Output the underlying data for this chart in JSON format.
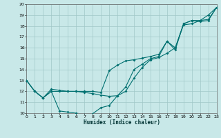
{
  "xlabel": "Humidex (Indice chaleur)",
  "bg_color": "#c8e8e8",
  "grid_color": "#a0c8c8",
  "line_color": "#007070",
  "xlim": [
    0,
    23
  ],
  "ylim": [
    10,
    20
  ],
  "xticks": [
    0,
    1,
    2,
    3,
    4,
    5,
    6,
    7,
    8,
    9,
    10,
    11,
    12,
    13,
    14,
    15,
    16,
    17,
    18,
    19,
    20,
    21,
    22,
    23
  ],
  "yticks": [
    10,
    11,
    12,
    13,
    14,
    15,
    16,
    17,
    18,
    19,
    20
  ],
  "line1_x": [
    0,
    1,
    2,
    3,
    4,
    5,
    6,
    7,
    8,
    9,
    10,
    11,
    12,
    13,
    14,
    15,
    16,
    17,
    18,
    19,
    20,
    21,
    22,
    23
  ],
  "line1_y": [
    13.0,
    12.0,
    11.4,
    12.0,
    10.2,
    10.1,
    10.0,
    9.9,
    9.95,
    10.5,
    10.7,
    11.6,
    12.4,
    14.0,
    14.5,
    15.0,
    15.2,
    16.6,
    15.8,
    18.2,
    18.5,
    18.4,
    18.5,
    19.7
  ],
  "line2_x": [
    0,
    1,
    2,
    3,
    4,
    5,
    6,
    7,
    8,
    9,
    10,
    11,
    12,
    13,
    14,
    15,
    16,
    17,
    18,
    19,
    20,
    21,
    22,
    23
  ],
  "line2_y": [
    13.0,
    12.0,
    11.4,
    12.0,
    12.0,
    12.0,
    12.0,
    11.9,
    11.8,
    11.65,
    11.55,
    11.6,
    12.0,
    13.2,
    14.2,
    14.9,
    15.1,
    15.5,
    16.0,
    18.1,
    18.2,
    18.5,
    19.0,
    19.7
  ],
  "line3_x": [
    0,
    1,
    2,
    3,
    4,
    5,
    6,
    7,
    8,
    9,
    10,
    11,
    12,
    13,
    14,
    15,
    16,
    17,
    18,
    19,
    20,
    21,
    22,
    23
  ],
  "line3_y": [
    13.0,
    12.0,
    11.4,
    12.2,
    12.1,
    12.0,
    12.0,
    12.0,
    12.0,
    11.9,
    13.9,
    14.4,
    14.8,
    14.9,
    15.05,
    15.2,
    15.4,
    16.6,
    16.0,
    18.2,
    18.5,
    18.5,
    18.6,
    19.7
  ]
}
